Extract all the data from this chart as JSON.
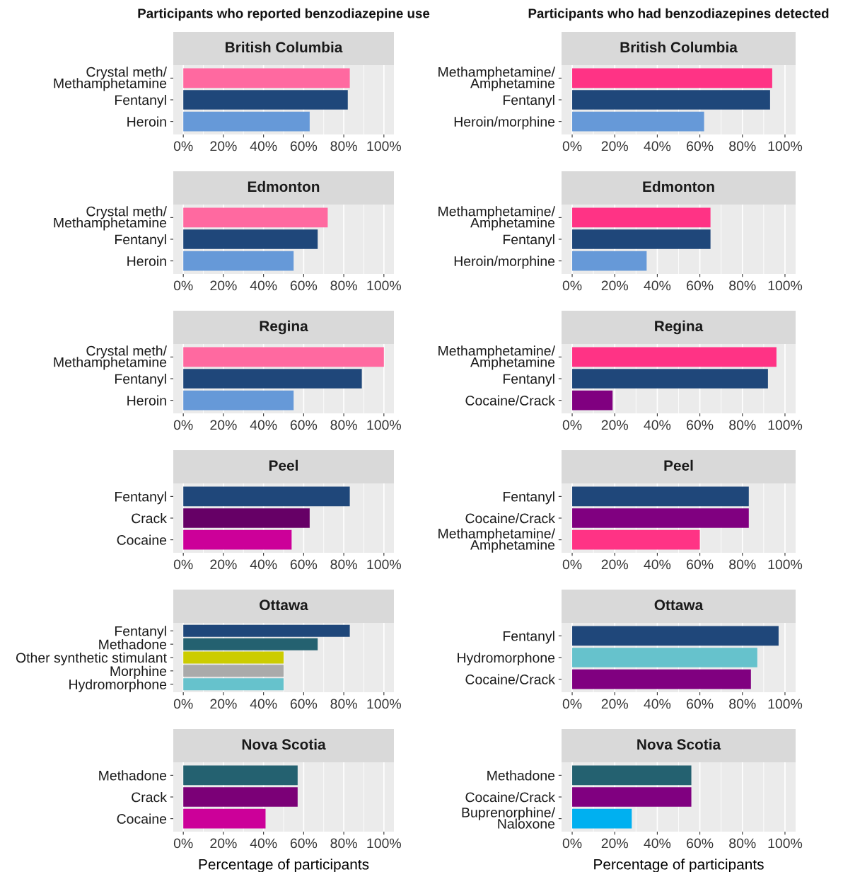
{
  "chart_data": [
    {
      "type": "bar",
      "orientation": "horizontal",
      "title": "British Columbia",
      "annotations": [
        "Participants who reported benzodiazepine use"
      ],
      "categories": [
        "Crystal meth/\nMethamphetamine",
        "Fentanyl",
        "Heroin"
      ],
      "values": [
        83,
        82,
        63
      ],
      "colors": [
        "#ff69a0",
        "#1f477a",
        "#6699d8"
      ],
      "xlim": [
        -5,
        105
      ],
      "xticks": [
        {
          "value": 0,
          "label": "0%"
        },
        {
          "value": 20,
          "label": "20%"
        },
        {
          "value": 40,
          "label": "40%"
        },
        {
          "value": 60,
          "label": "60%"
        },
        {
          "value": 80,
          "label": "80%"
        },
        {
          "value": 100,
          "label": "100%"
        }
      ],
      "grid": "x"
    },
    {
      "type": "bar",
      "orientation": "horizontal",
      "title": "British Columbia",
      "annotations": [
        "Participants who had benzodiazepines detected"
      ],
      "categories": [
        "Methamphetamine/\nAmphetamine",
        "Fentanyl",
        "Heroin/morphine"
      ],
      "values": [
        94,
        93,
        62
      ],
      "colors": [
        "#ff3385",
        "#1f477a",
        "#6699d8"
      ],
      "xlim": [
        -5,
        105
      ],
      "xticks": [
        {
          "value": 0,
          "label": "0%"
        },
        {
          "value": 20,
          "label": "20%"
        },
        {
          "value": 40,
          "label": "40%"
        },
        {
          "value": 60,
          "label": "60%"
        },
        {
          "value": 80,
          "label": "80%"
        },
        {
          "value": 100,
          "label": "100%"
        }
      ],
      "grid": "x"
    },
    {
      "type": "bar",
      "orientation": "horizontal",
      "title": "Edmonton",
      "categories": [
        "Crystal meth/\nMethamphetamine",
        "Fentanyl",
        "Heroin"
      ],
      "values": [
        72,
        67,
        55
      ],
      "colors": [
        "#ff69a0",
        "#1f477a",
        "#6699d8"
      ],
      "xlim": [
        -5,
        105
      ],
      "xticks": [
        {
          "value": 0,
          "label": "0%"
        },
        {
          "value": 20,
          "label": "20%"
        },
        {
          "value": 40,
          "label": "40%"
        },
        {
          "value": 60,
          "label": "60%"
        },
        {
          "value": 80,
          "label": "80%"
        },
        {
          "value": 100,
          "label": "100%"
        }
      ],
      "grid": "x"
    },
    {
      "type": "bar",
      "orientation": "horizontal",
      "title": "Edmonton",
      "categories": [
        "Methamphetamine/\nAmphetamine",
        "Fentanyl",
        "Heroin/morphine"
      ],
      "values": [
        65,
        65,
        35
      ],
      "colors": [
        "#ff3385",
        "#1f477a",
        "#6699d8"
      ],
      "xlim": [
        -5,
        105
      ],
      "xticks": [
        {
          "value": 0,
          "label": "0%"
        },
        {
          "value": 20,
          "label": "20%"
        },
        {
          "value": 40,
          "label": "40%"
        },
        {
          "value": 60,
          "label": "60%"
        },
        {
          "value": 80,
          "label": "80%"
        },
        {
          "value": 100,
          "label": "100%"
        }
      ],
      "grid": "x"
    },
    {
      "type": "bar",
      "orientation": "horizontal",
      "title": "Regina",
      "categories": [
        "Crystal meth/\nMethamphetamine",
        "Fentanyl",
        "Heroin"
      ],
      "values": [
        100,
        89,
        55
      ],
      "colors": [
        "#ff69a0",
        "#1f477a",
        "#6699d8"
      ],
      "xlim": [
        -5,
        105
      ],
      "xticks": [
        {
          "value": 0,
          "label": "0%"
        },
        {
          "value": 20,
          "label": "20%"
        },
        {
          "value": 40,
          "label": "40%"
        },
        {
          "value": 60,
          "label": "60%"
        },
        {
          "value": 80,
          "label": "80%"
        },
        {
          "value": 100,
          "label": "100%"
        }
      ],
      "grid": "x"
    },
    {
      "type": "bar",
      "orientation": "horizontal",
      "title": "Regina",
      "categories": [
        "Methamphetamine/\nAmphetamine",
        "Fentanyl",
        "Cocaine/Crack"
      ],
      "values": [
        96,
        92,
        19
      ],
      "colors": [
        "#ff3385",
        "#1f477a",
        "#800080"
      ],
      "xlim": [
        -5,
        105
      ],
      "xticks": [
        {
          "value": 0,
          "label": "0%"
        },
        {
          "value": 20,
          "label": "20%"
        },
        {
          "value": 40,
          "label": "40%"
        },
        {
          "value": 60,
          "label": "60%"
        },
        {
          "value": 80,
          "label": "80%"
        },
        {
          "value": 100,
          "label": "100%"
        }
      ],
      "grid": "x"
    },
    {
      "type": "bar",
      "orientation": "horizontal",
      "title": "Peel",
      "categories": [
        "Fentanyl",
        "Crack",
        "Cocaine"
      ],
      "values": [
        83,
        63,
        54
      ],
      "colors": [
        "#1f477a",
        "#660066",
        "#cc0099"
      ],
      "xlim": [
        -5,
        105
      ],
      "xticks": [
        {
          "value": 0,
          "label": "0%"
        },
        {
          "value": 20,
          "label": "20%"
        },
        {
          "value": 40,
          "label": "40%"
        },
        {
          "value": 60,
          "label": "60%"
        },
        {
          "value": 80,
          "label": "80%"
        },
        {
          "value": 100,
          "label": "100%"
        }
      ],
      "grid": "x"
    },
    {
      "type": "bar",
      "orientation": "horizontal",
      "title": "Peel",
      "categories": [
        "Fentanyl",
        "Cocaine/Crack",
        "Methamphetamine/\nAmphetamine"
      ],
      "values": [
        83,
        83,
        60
      ],
      "colors": [
        "#1f477a",
        "#800080",
        "#ff3385"
      ],
      "xlim": [
        -5,
        105
      ],
      "xticks": [
        {
          "value": 0,
          "label": "0%"
        },
        {
          "value": 20,
          "label": "20%"
        },
        {
          "value": 40,
          "label": "40%"
        },
        {
          "value": 60,
          "label": "60%"
        },
        {
          "value": 80,
          "label": "80%"
        },
        {
          "value": 100,
          "label": "100%"
        }
      ],
      "grid": "x"
    },
    {
      "type": "bar",
      "orientation": "horizontal",
      "title": "Ottawa",
      "categories": [
        "Fentanyl",
        "Methadone",
        "Other synthetic stimulant",
        "Morphine",
        "Hydromorphone"
      ],
      "values": [
        83,
        67,
        50,
        50,
        50
      ],
      "colors": [
        "#1f477a",
        "#246170",
        "#cccc00",
        "#aaaaaa",
        "#66c2cc"
      ],
      "xlim": [
        -5,
        105
      ],
      "xticks": [
        {
          "value": 0,
          "label": "0%"
        },
        {
          "value": 20,
          "label": "20%"
        },
        {
          "value": 40,
          "label": "40%"
        },
        {
          "value": 60,
          "label": "60%"
        },
        {
          "value": 80,
          "label": "80%"
        },
        {
          "value": 100,
          "label": "100%"
        }
      ],
      "grid": "x"
    },
    {
      "type": "bar",
      "orientation": "horizontal",
      "title": "Ottawa",
      "categories": [
        "Fentanyl",
        "Hydromorphone",
        "Cocaine/Crack"
      ],
      "values": [
        97,
        87,
        84
      ],
      "colors": [
        "#1f477a",
        "#66c2cc",
        "#800080"
      ],
      "xlim": [
        -5,
        105
      ],
      "xticks": [
        {
          "value": 0,
          "label": "0%"
        },
        {
          "value": 20,
          "label": "20%"
        },
        {
          "value": 40,
          "label": "40%"
        },
        {
          "value": 60,
          "label": "60%"
        },
        {
          "value": 80,
          "label": "80%"
        },
        {
          "value": 100,
          "label": "100%"
        }
      ],
      "grid": "x"
    },
    {
      "type": "bar",
      "orientation": "horizontal",
      "title": "Nova Scotia",
      "xlabel": "Percentage of participants",
      "categories": [
        "Methadone",
        "Crack",
        "Cocaine"
      ],
      "values": [
        57,
        57,
        41
      ],
      "colors": [
        "#246170",
        "#7b0077",
        "#cc0099"
      ],
      "xlim": [
        -5,
        105
      ],
      "xticks": [
        {
          "value": 0,
          "label": "0%"
        },
        {
          "value": 20,
          "label": "20%"
        },
        {
          "value": 40,
          "label": "40%"
        },
        {
          "value": 60,
          "label": "60%"
        },
        {
          "value": 80,
          "label": "80%"
        },
        {
          "value": 100,
          "label": "100%"
        }
      ],
      "grid": "x"
    },
    {
      "type": "bar",
      "orientation": "horizontal",
      "title": "Nova Scotia",
      "xlabel": "Percentage of participants",
      "categories": [
        "Methadone",
        "Cocaine/Crack",
        "Buprenorphine/\nNaloxone"
      ],
      "values": [
        56,
        56,
        28
      ],
      "colors": [
        "#246170",
        "#800080",
        "#00b0f0"
      ],
      "xlim": [
        -5,
        105
      ],
      "xticks": [
        {
          "value": 0,
          "label": "0%"
        },
        {
          "value": 20,
          "label": "20%"
        },
        {
          "value": 40,
          "label": "40%"
        },
        {
          "value": 60,
          "label": "60%"
        },
        {
          "value": 80,
          "label": "80%"
        },
        {
          "value": 100,
          "label": "100%"
        }
      ],
      "grid": "x"
    }
  ]
}
